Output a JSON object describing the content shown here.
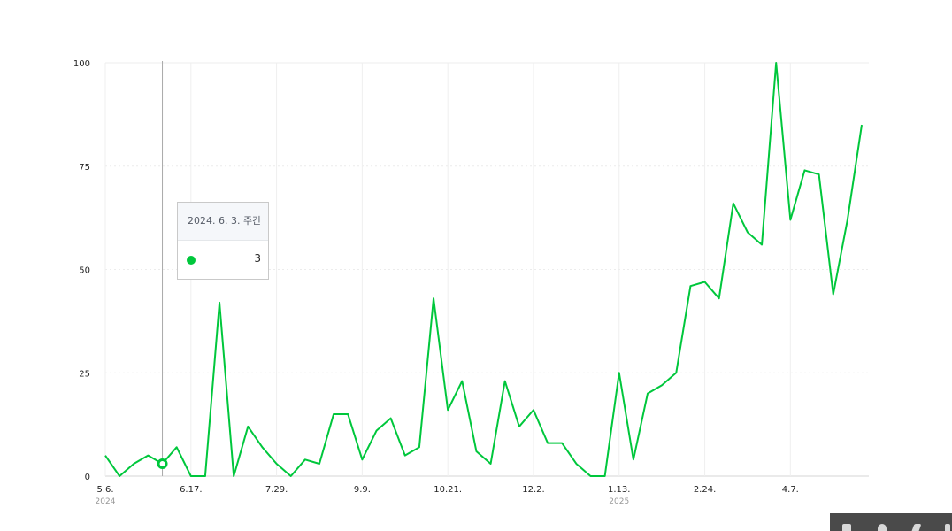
{
  "chart_data": {
    "type": "line",
    "title": "",
    "xlabel": "",
    "ylabel": "",
    "ylim": [
      0,
      100
    ],
    "yticks": [
      0,
      25,
      50,
      75,
      100
    ],
    "grid": true,
    "series_color": "#00c73c",
    "x_tick_labels": [
      {
        "index": 0,
        "label": "5.6.",
        "year": "2024"
      },
      {
        "index": 6,
        "label": "6.17."
      },
      {
        "index": 12,
        "label": "7.29."
      },
      {
        "index": 18,
        "label": "9.9."
      },
      {
        "index": 24,
        "label": "10.21."
      },
      {
        "index": 30,
        "label": "12.2."
      },
      {
        "index": 36,
        "label": "1.13.",
        "year": "2025"
      },
      {
        "index": 42,
        "label": "2.24."
      },
      {
        "index": 48,
        "label": "4.7."
      }
    ],
    "series": [
      {
        "values": [
          5,
          0,
          3,
          5,
          3,
          7,
          0,
          0,
          42,
          0,
          12,
          7,
          3,
          0,
          4,
          3,
          15,
          15,
          4,
          11,
          14,
          5,
          7,
          43,
          16,
          23,
          6,
          3,
          23,
          12,
          16,
          8,
          8,
          3,
          0,
          0,
          25,
          4,
          20,
          22,
          25,
          46,
          47,
          43,
          66,
          59,
          56,
          100,
          62,
          74,
          73,
          44,
          62,
          85
        ]
      }
    ]
  },
  "tooltip": {
    "title": "2024. 6. 3. 주간",
    "value": "3",
    "index": 4
  },
  "taskbar": {
    "icons": [
      "printer-icon",
      "shield-icon",
      "network-icon",
      "app-icon"
    ]
  }
}
